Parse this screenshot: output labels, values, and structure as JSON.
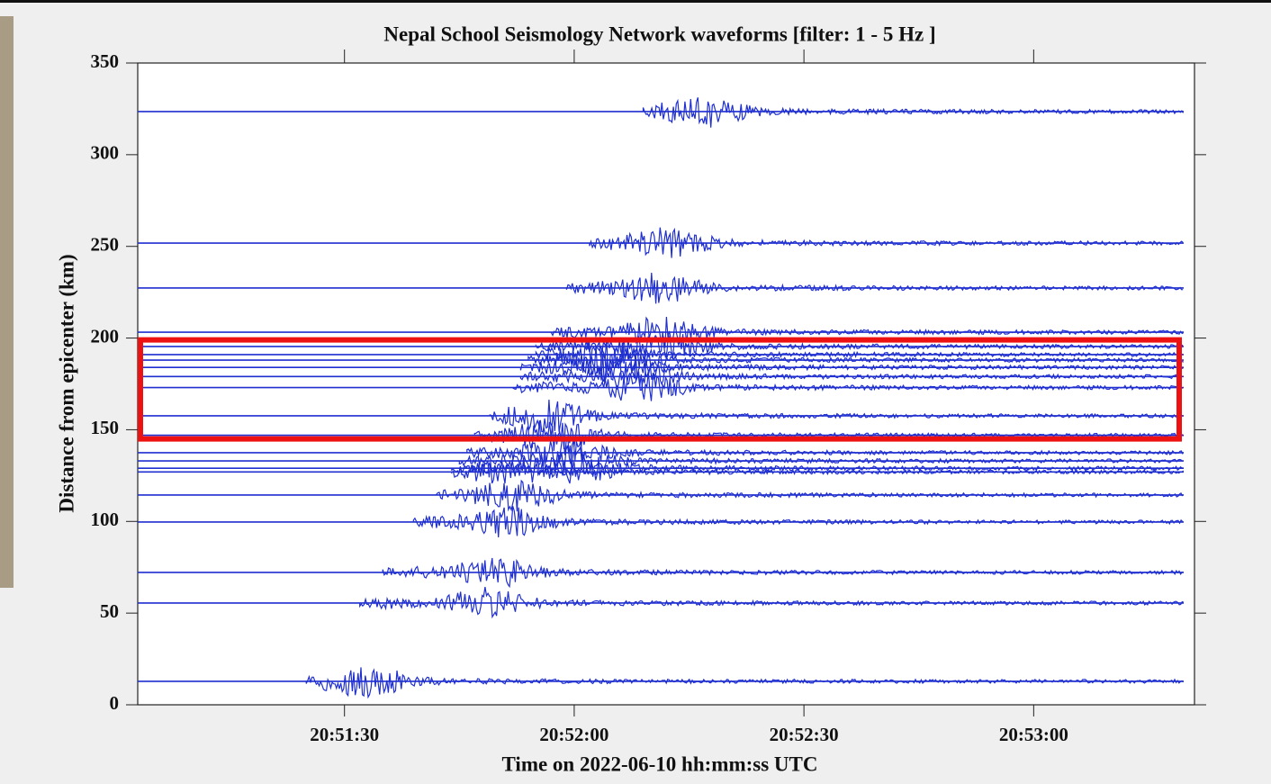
{
  "chart_data": {
    "type": "record-section",
    "title": "Nepal School Seismology Network waveforms [filter:  1 -  5 Hz ]",
    "x_label": "Time on 2022-06-10    hh:mm:ss UTC",
    "y_label": "Distance from epicenter (km)",
    "color": "#1f2fd0",
    "xlim": [
      "20:51:03",
      "20:53:21"
    ],
    "xticks": [
      "20:51:30",
      "20:52:00",
      "20:52:30",
      "20:53:00"
    ],
    "ylim": [
      0,
      350
    ],
    "yticks": [
      0,
      50,
      100,
      150,
      200,
      250,
      300,
      350
    ],
    "highlight_band": [
      145,
      199
    ],
    "highlight_color": "#ee1111",
    "traces": [
      {
        "distance": 323.5,
        "onset": "20:52:09"
      },
      {
        "distance": 251.8,
        "onset": "20:52:02"
      },
      {
        "distance": 227.3,
        "onset": "20:51:59"
      },
      {
        "distance": 203.2,
        "onset": "20:51:57"
      },
      {
        "distance": 195.4,
        "onset": "20:51:55"
      },
      {
        "distance": 191,
        "onset": "20:51:55"
      },
      {
        "distance": 188,
        "onset": "20:51:54"
      },
      {
        "distance": 184,
        "onset": "20:51:53"
      },
      {
        "distance": 179,
        "onset": "20:51:53"
      },
      {
        "distance": 173,
        "onset": "20:51:52"
      },
      {
        "distance": 157.6,
        "onset": "20:51:49"
      },
      {
        "distance": 147,
        "onset": "20:51:47"
      },
      {
        "distance": 137.5,
        "onset": "20:51:46"
      },
      {
        "distance": 133,
        "onset": "20:51:45"
      },
      {
        "distance": 129,
        "onset": "20:51:44"
      },
      {
        "distance": 127,
        "onset": "20:51:44"
      },
      {
        "distance": 114.4,
        "onset": "20:51:42"
      },
      {
        "distance": 99.7,
        "onset": "20:51:39"
      },
      {
        "distance": 72.2,
        "onset": "20:51:35"
      },
      {
        "distance": 55.5,
        "onset": "20:51:32"
      },
      {
        "distance": 12.8,
        "onset": "20:51:25"
      }
    ]
  }
}
